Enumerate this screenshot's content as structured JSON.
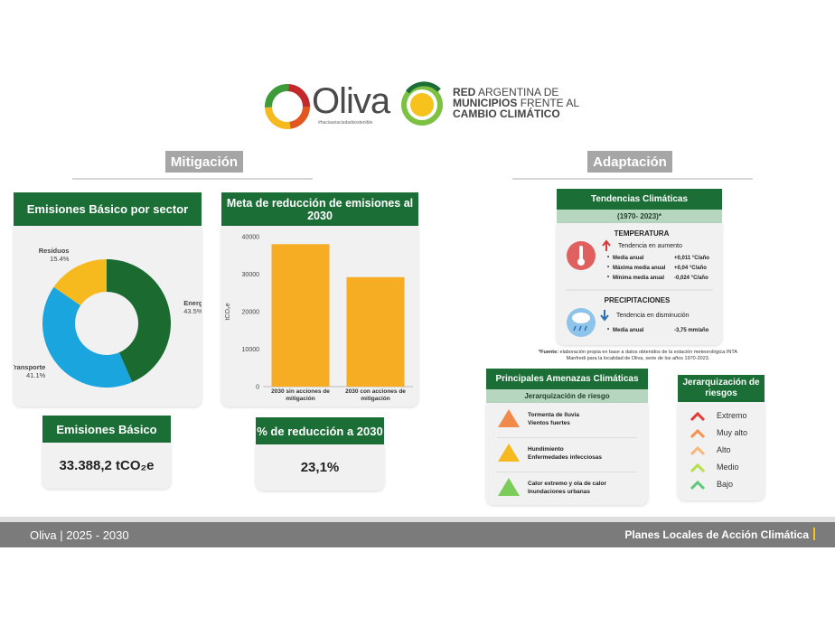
{
  "header": {
    "oliva": "Oliva",
    "hashtag": "#haciaunaciudadsostenible",
    "ramcc": [
      "RED",
      "ARGENTINA DE",
      "MUNICIPIOS",
      "FRENTE AL",
      "CAMBIO CLIMÁTICO"
    ]
  },
  "mitigation": {
    "heading": "Mitigación",
    "basic_card": {
      "title": "Emisiones Básico",
      "value": "33.388,2 tCO₂e"
    },
    "reduction_card": {
      "title": "% de reducción a 2030",
      "value": "23,1%"
    }
  },
  "chart_data": [
    {
      "type": "pie",
      "title": "Emisiones Básico por sector",
      "donut": true,
      "categories": [
        "Energia",
        "Transporte",
        "Residuos"
      ],
      "values": [
        43.5,
        41.1,
        15.4
      ],
      "value_labels": [
        "43.5%",
        "41.1%",
        "15.4%"
      ],
      "colors": [
        "#1b6b30",
        "#1aa5df",
        "#f6b91e"
      ]
    },
    {
      "type": "bar",
      "title": "Meta de reducción de emisiones al 2030",
      "y_label": "tCO₂e",
      "categories": [
        "2030 sin acciones de mitigación",
        "2030 con acciones de mitigación"
      ],
      "values": [
        38000,
        29200
      ],
      "color": "#f6ad24",
      "ylim": [
        0,
        40000
      ],
      "yticks": [
        0,
        10000,
        20000,
        30000,
        40000
      ],
      "grid": false
    }
  ],
  "adaptation": {
    "heading": "Adaptación",
    "trends": {
      "title": "Tendencias Climáticas",
      "period": "(1970- 2023)*",
      "temperature": {
        "title": "TEMPERATURA",
        "trend": "Tendencia en aumento",
        "rows": [
          [
            "Media anual",
            "+0,011 °C/año"
          ],
          [
            "Máxima media anual",
            "+0,04 °C/año"
          ],
          [
            "Mínima media anual",
            "-0,024 °C/año"
          ]
        ]
      },
      "precipitation": {
        "title": "PRECIPITACIONES",
        "trend": "Tendencia en disminución",
        "rows": [
          [
            "Media anual",
            "-3,75 mm/año"
          ]
        ]
      },
      "source": {
        "lead": "*Fuente:",
        "text": "elaboración propia en base a datos obtenidos de la estación meteorológica INTA Manfredi para la localidad de Oliva, serie de los años 1970-2023."
      }
    },
    "threats": {
      "title": "Principales Amenazas Climáticas",
      "subtitle": "Jerarquización de riesgo",
      "items": [
        [
          "Tormenta de lluvia",
          "Vientos fuertes"
        ],
        [
          "Hundimiento",
          "Enfermedades infecciosas"
        ],
        [
          "Calor extremo y ola de calor",
          "Inundaciones urbanas"
        ]
      ]
    },
    "risk_levels": {
      "title": "Jerarquización de riesgos",
      "items": [
        "Extremo",
        "Muy alto",
        "Alto",
        "Medio",
        "Bajo"
      ]
    }
  },
  "footer": {
    "left": "Oliva | 2025 - 2030",
    "right": "Planes Locales de Acción Climática"
  }
}
